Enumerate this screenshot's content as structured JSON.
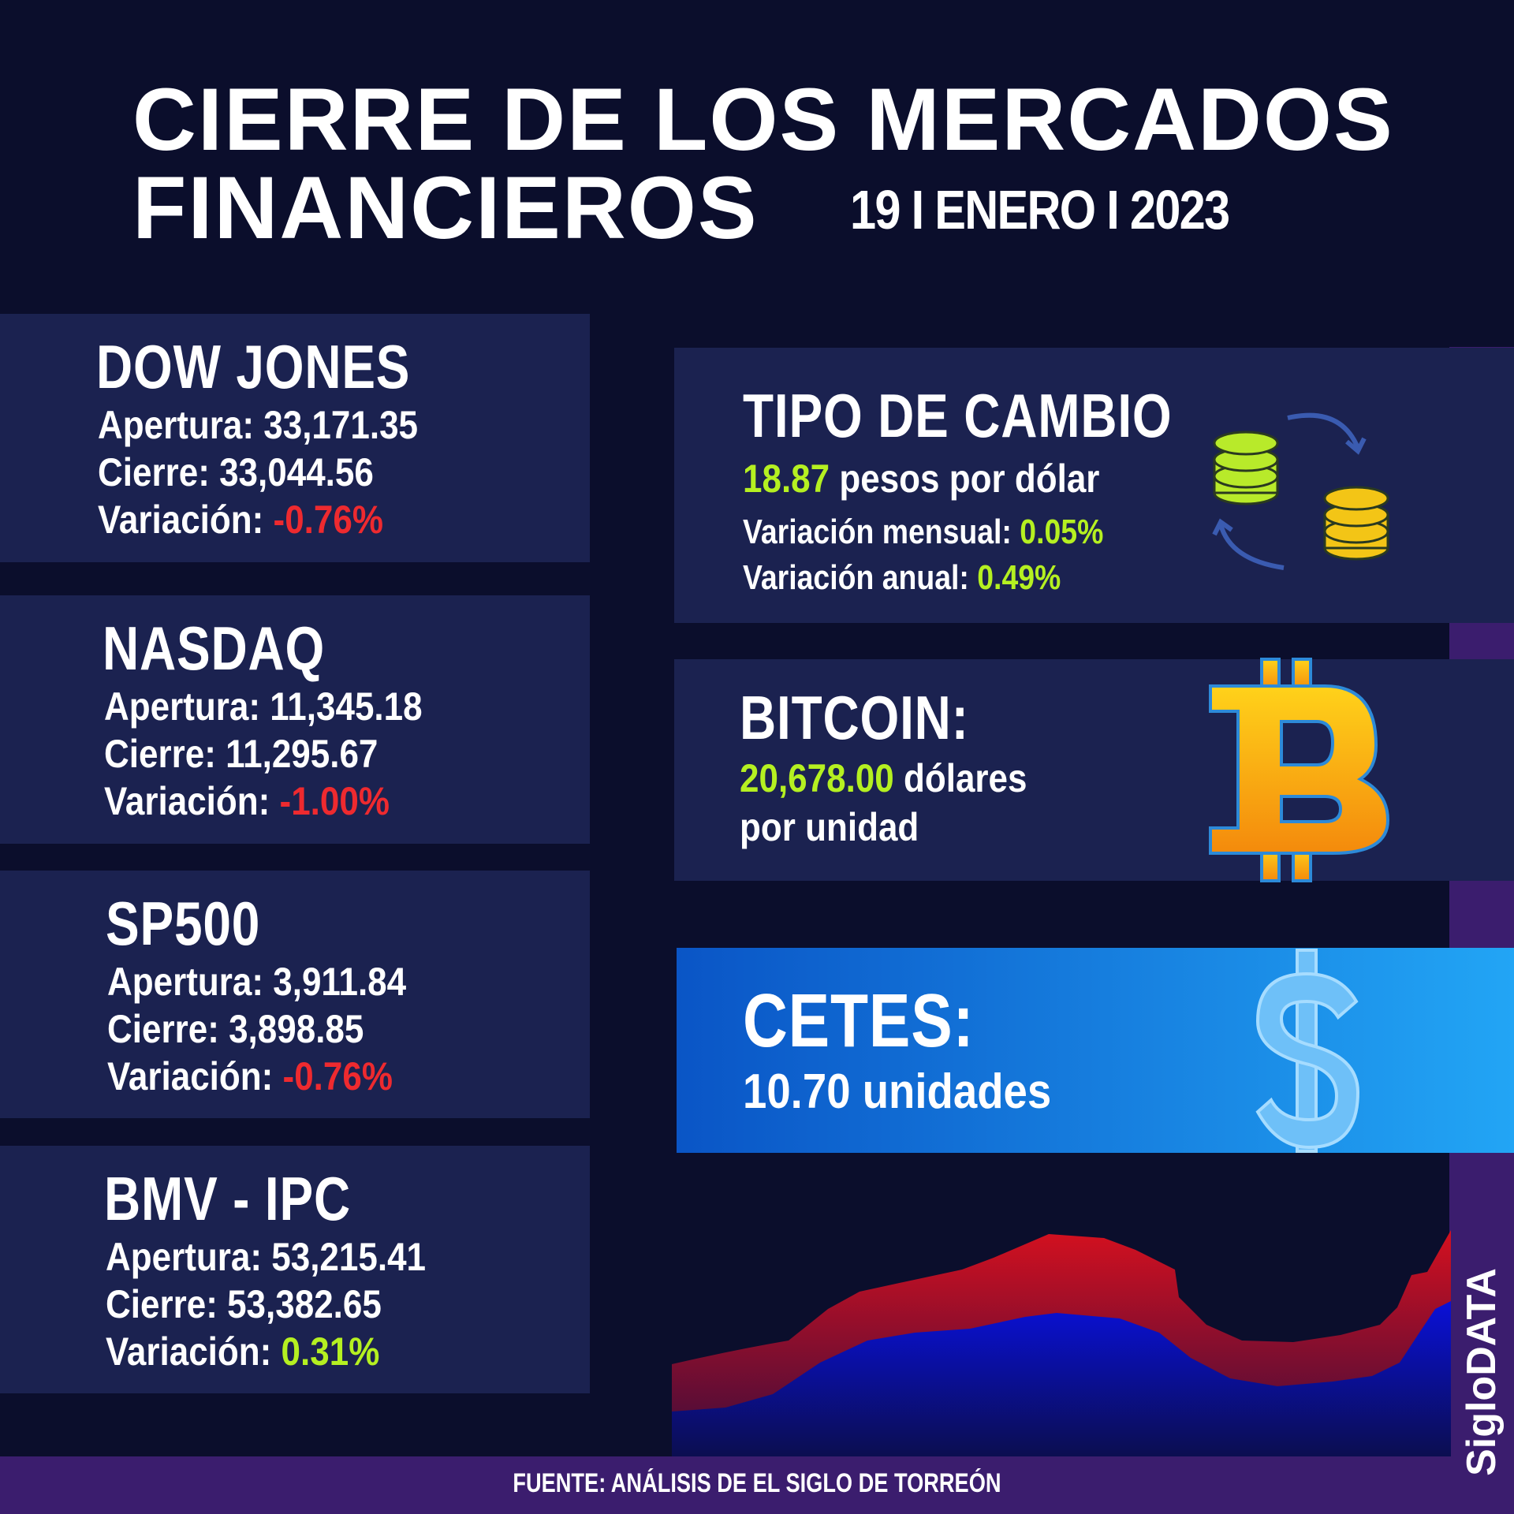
{
  "header": {
    "title": [
      "CIERRE DE LOS MERCADOS",
      "FINANCIEROS"
    ],
    "date": "19 I ENERO I 2023"
  },
  "indices": [
    {
      "name": "DOW JONES",
      "rows": [
        {
          "label": "Apertura:",
          "value": "33,171.35"
        },
        {
          "label": "Cierre:",
          "value": "33,044.56"
        },
        {
          "label": "Variación:",
          "value": "-0.76%",
          "color": "#ee2a2f"
        }
      ]
    },
    {
      "name": "NASDAQ",
      "rows": [
        {
          "label": "Apertura:",
          "value": "11,345.18"
        },
        {
          "label": "Cierre:",
          "value": "11,295.67"
        },
        {
          "label": "Variación:",
          "value": "-1.00%",
          "color": "#ee2a2f"
        }
      ]
    },
    {
      "name": "SP500",
      "rows": [
        {
          "label": "Apertura:",
          "value": "3,911.84"
        },
        {
          "label": "Cierre:",
          "value": "3,898.85"
        },
        {
          "label": "Variación:",
          "value": "-0.76%",
          "color": "#ee2a2f"
        }
      ]
    },
    {
      "name": "BMV - IPC",
      "rows": [
        {
          "label": "Apertura:",
          "value": "53,215.41"
        },
        {
          "label": "Cierre:",
          "value": "53,382.65"
        },
        {
          "label": "Variación:",
          "value": "0.31%",
          "color": "#b5f021"
        }
      ]
    }
  ],
  "exchange": {
    "title": "TIPO DE CAMBIO",
    "rate": "18.87",
    "unit": "pesos por dólar",
    "monthly_label": "Variación mensual:",
    "monthly": "0.05%",
    "annual_label": "Variación anual:",
    "annual": "0.49%"
  },
  "bitcoin": {
    "title": "BITCOIN:",
    "value": "20,678.00",
    "unit": "dólares",
    "unit_line2": "por unidad"
  },
  "cetes": {
    "title": "CETES:",
    "value": "10.70",
    "unit": "unidades"
  },
  "footer": {
    "source": "FUENTE: ANÁLISIS DE EL SIGLO DE TORREÓN",
    "brand": "SigloDATA"
  }
}
